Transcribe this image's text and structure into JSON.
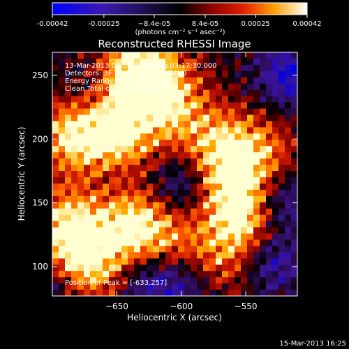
{
  "chart_data": {
    "type": "heatmap",
    "title": "Reconstructed RHESSI Image",
    "xlabel": "Heliocentric X (arcsec)",
    "ylabel": "Heliocentric Y (arcsec)",
    "xlim": [
      -700,
      -510
    ],
    "ylim": [
      77,
      268
    ],
    "x_ticks": [
      -650,
      -600,
      -550
    ],
    "y_ticks": [
      100,
      150,
      200,
      250
    ],
    "colorbar": {
      "ticks": [
        -0.00042,
        -0.00025,
        -8.4e-05,
        8.4e-05,
        0.00025,
        0.00042
      ],
      "tick_labels": [
        "-0.00042",
        "-0.00025",
        "−8.4e-05",
        "8.4e-05",
        "0.00025",
        "0.00042"
      ],
      "range": [
        -0.00042,
        0.00042
      ],
      "unit_label": "(photons cm⁻² s⁻¹ asec⁻²)",
      "colormap": [
        "#0000ff",
        "#4a1aa0",
        "#000000",
        "#6a0000",
        "#c01000",
        "#ff5a00",
        "#ffb000",
        "#ffffff"
      ]
    },
    "annotations": {
      "time_range": "13-Mar-2013 03:04:28.000 to 03:17:30.000",
      "detectors": "Detectors: 3F 5F 6F 7F 8F 9F, Att 0",
      "energy": "Energy Range: 12.0 - 25.0 keV",
      "clean": "Clean     Total counts: 6.23E+03",
      "peak": "Position of Peak = [-633,257]"
    },
    "footer": "15-Mar-2013 16:25",
    "hot_regions": [
      {
        "x": -683,
        "y": 205,
        "level": 0.9
      },
      {
        "x": -690,
        "y": 130,
        "level": 0.95
      },
      {
        "x": -672,
        "y": 100,
        "level": 0.9
      },
      {
        "x": -648,
        "y": 190,
        "level": 0.75
      },
      {
        "x": -633,
        "y": 257,
        "level": 1.0
      },
      {
        "x": -612,
        "y": 230,
        "level": 0.8
      },
      {
        "x": -640,
        "y": 140,
        "level": 0.75
      },
      {
        "x": -620,
        "y": 118,
        "level": 0.7
      },
      {
        "x": -560,
        "y": 160,
        "level": 0.85
      },
      {
        "x": -548,
        "y": 130,
        "level": 0.8
      },
      {
        "x": -575,
        "y": 195,
        "level": 0.7
      },
      {
        "x": -540,
        "y": 190,
        "level": 0.6
      },
      {
        "x": -655,
        "y": 225,
        "level": 0.65
      },
      {
        "x": -575,
        "y": 100,
        "level": 0.55
      }
    ],
    "cold_regions": [
      {
        "x": -515,
        "y": 250,
        "level": 0.85
      },
      {
        "x": -522,
        "y": 150,
        "level": 0.75
      },
      {
        "x": -530,
        "y": 105,
        "level": 0.8
      },
      {
        "x": -600,
        "y": 165,
        "level": 0.7
      },
      {
        "x": -625,
        "y": 90,
        "level": 0.75
      },
      {
        "x": -670,
        "y": 235,
        "level": 0.6
      },
      {
        "x": -595,
        "y": 85,
        "level": 0.6
      },
      {
        "x": -650,
        "y": 170,
        "level": 0.5
      },
      {
        "x": -700,
        "y": 85,
        "level": 0.5
      }
    ]
  }
}
